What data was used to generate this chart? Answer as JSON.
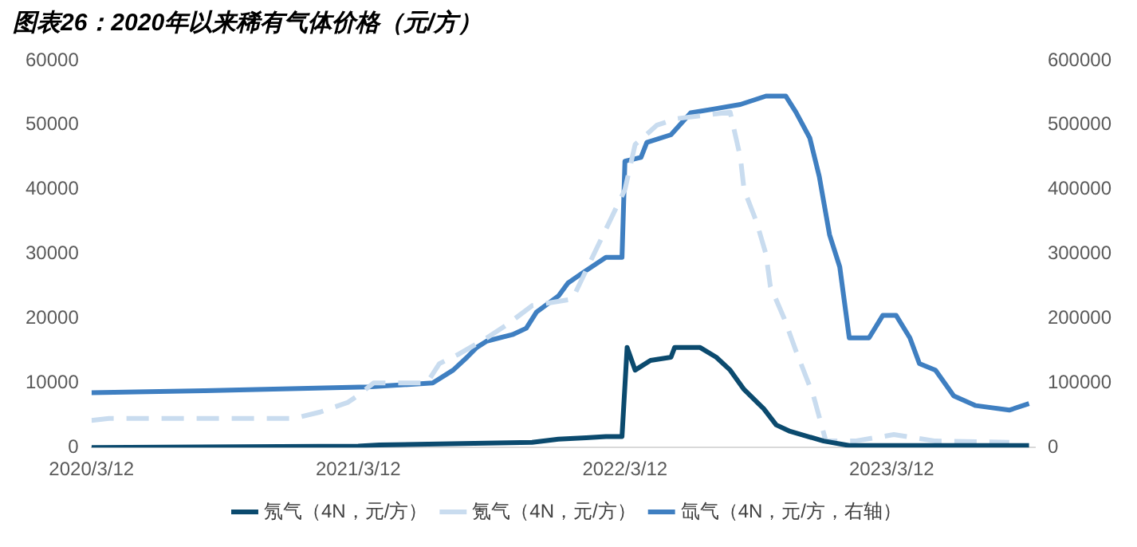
{
  "chart_data": {
    "type": "line",
    "title": "图表26：2020年以来稀有气体价格（元/方）",
    "xlim": [
      "2020-03-12",
      "2023-09-24"
    ],
    "xticks": [
      {
        "value": "2020-03-12",
        "label": "2020/3/12"
      },
      {
        "value": "2021-03-12",
        "label": "2021/3/12"
      },
      {
        "value": "2022-03-12",
        "label": "2022/3/12"
      },
      {
        "value": "2023-03-12",
        "label": "2023/3/12"
      }
    ],
    "ylim": [
      0,
      60000
    ],
    "yticks": [
      0,
      10000,
      20000,
      30000,
      40000,
      50000,
      60000
    ],
    "y2lim": [
      0,
      600000
    ],
    "y2ticks": [
      0,
      100000,
      200000,
      300000,
      400000,
      500000,
      600000
    ],
    "grid": false,
    "legend": "bottom",
    "marker": "none",
    "series": [
      {
        "name": "氖气（4N，元/方）",
        "color": "#0b4a6e",
        "line_style": "solid",
        "x": [
          "2020-03-12",
          "2021-03-12",
          "2021-04-10",
          "2021-11-05",
          "2021-12-11",
          "2022-01-18",
          "2022-02-14",
          "2022-03-08",
          "2022-03-12",
          "2022-03-15",
          "2022-03-26",
          "2022-04-16",
          "2022-05-14",
          "2022-05-19",
          "2022-06-23",
          "2022-07-15",
          "2022-08-03",
          "2022-08-22",
          "2022-09-18",
          "2022-10-05",
          "2022-10-24",
          "2022-12-09",
          "2023-01-13",
          "2023-09-16"
        ],
        "values": [
          0,
          200,
          400,
          800,
          1300,
          1500,
          1700,
          1700,
          9600,
          15500,
          12000,
          13500,
          14000,
          15500,
          15500,
          14000,
          12000,
          9000,
          6000,
          3500,
          2500,
          1000,
          300,
          300
        ]
      },
      {
        "name": "氪气（4N，元/方）",
        "color": "#c9dcef",
        "line_style": "dashed",
        "x": [
          "2020-03-12",
          "2020-04-05",
          "2020-12-14",
          "2021-01-19",
          "2021-02-26",
          "2021-03-11",
          "2021-04-02",
          "2021-06-14",
          "2021-07-01",
          "2021-07-28",
          "2021-09-04",
          "2021-10-01",
          "2021-11-05",
          "2021-12-30",
          "2022-03-12",
          "2022-03-26",
          "2022-04-25",
          "2022-05-22",
          "2022-08-03",
          "2022-08-17",
          "2022-08-22",
          "2022-09-08",
          "2022-09-21",
          "2022-09-27",
          "2022-10-16",
          "2022-11-01",
          "2022-11-25",
          "2022-12-12",
          "2022-12-25",
          "2023-01-21",
          "2023-03-15",
          "2023-05-11",
          "2023-08-20"
        ],
        "values": [
          4200,
          4500,
          4500,
          5500,
          7000,
          8000,
          10000,
          10000,
          13000,
          14500,
          17000,
          19000,
          22000,
          23000,
          40000,
          47000,
          50000,
          51000,
          52000,
          45000,
          40000,
          35000,
          30000,
          25000,
          20000,
          15000,
          8000,
          1000,
          1000,
          1000,
          2000,
          1000,
          800
        ]
      },
      {
        "name": "氙气（4N，元/方，右轴）",
        "color": "#3f7fc1",
        "line_style": "solid",
        "axis": "y2",
        "x": [
          "2020-03-12",
          "2020-08-14",
          "2021-03-25",
          "2021-06-22",
          "2021-07-20",
          "2021-08-08",
          "2021-08-21",
          "2021-09-04",
          "2021-10-09",
          "2021-10-28",
          "2021-11-11",
          "2021-12-11",
          "2021-12-24",
          "2022-01-12",
          "2022-02-14",
          "2022-03-08",
          "2022-03-12",
          "2022-04-03",
          "2022-04-11",
          "2022-05-14",
          "2022-06-10",
          "2022-07-12",
          "2022-08-17",
          "2022-09-21",
          "2022-10-18",
          "2022-11-01",
          "2022-11-20",
          "2022-12-03",
          "2022-12-17",
          "2022-12-31",
          "2023-01-13",
          "2023-02-09",
          "2023-02-28",
          "2023-03-18",
          "2023-04-06",
          "2023-04-19",
          "2023-05-11",
          "2023-06-05",
          "2023-07-05",
          "2023-08-20",
          "2023-09-16"
        ],
        "values": [
          85000,
          88000,
          94000,
          100000,
          120000,
          140000,
          155000,
          165000,
          175000,
          185000,
          210000,
          235000,
          255000,
          270000,
          295000,
          295000,
          444000,
          450000,
          473000,
          485000,
          519000,
          525000,
          532000,
          545000,
          545000,
          520000,
          480000,
          420000,
          330000,
          280000,
          170000,
          170000,
          205000,
          205000,
          170000,
          130000,
          120000,
          80000,
          65000,
          58000,
          68000
        ]
      }
    ]
  }
}
